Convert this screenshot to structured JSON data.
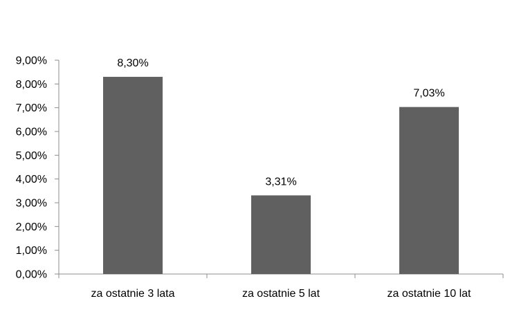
{
  "chart_data": {
    "type": "bar",
    "categories": [
      "za ostatnie 3 lata",
      "za ostatnie 5 lat",
      "za ostatnie 10 lat"
    ],
    "values": [
      8.3,
      3.31,
      7.03
    ],
    "data_labels": [
      "8,30%",
      "3,31%",
      "7,03%"
    ],
    "ylim": [
      0,
      9
    ],
    "y_ticks": [
      0,
      1,
      2,
      3,
      4,
      5,
      6,
      7,
      8,
      9
    ],
    "y_tick_labels": [
      "0,00%",
      "1,00%",
      "2,00%",
      "3,00%",
      "4,00%",
      "5,00%",
      "6,00%",
      "7,00%",
      "8,00%",
      "9,00%"
    ],
    "grid": false,
    "legend": "none",
    "title": "",
    "xlabel": "",
    "ylabel": "",
    "colors": {
      "bar": "#606060",
      "axis": "#8c8c8c",
      "text": "#000000"
    }
  }
}
